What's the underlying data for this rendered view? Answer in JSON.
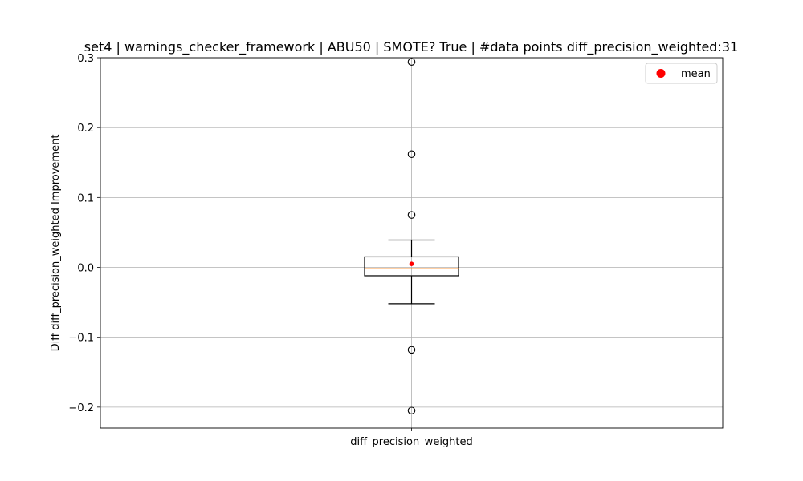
{
  "chart_data": {
    "type": "box",
    "title": "set4 | warnings_checker_framework | ABU50 | SMOTE? True | #data points diff_precision_weighted:31",
    "xlabel": "",
    "ylabel": "Diff diff_precision_weighted Improvement",
    "categories": [
      "diff_precision_weighted"
    ],
    "ylim": [
      -0.23,
      0.3
    ],
    "yticks": [
      -0.2,
      -0.1,
      0.0,
      0.1,
      0.2,
      0.3
    ],
    "ytick_labels": [
      "−0.2",
      "−0.1",
      "0.0",
      "0.1",
      "0.2",
      "0.3"
    ],
    "grid": true,
    "legend": {
      "placement": "top-right",
      "entries": [
        "mean"
      ]
    },
    "boxes": [
      {
        "name": "diff_precision_weighted",
        "whisker_low": -0.052,
        "q1": -0.012,
        "median": -0.002,
        "q3": 0.015,
        "whisker_high": 0.039,
        "mean": 0.005,
        "outliers": [
          0.294,
          0.162,
          0.075,
          -0.118,
          -0.205
        ]
      }
    ],
    "colors": {
      "median": "#ff7f0e",
      "mean": "#ff0000",
      "box": "#000000",
      "grid": "#b0b0b0"
    }
  }
}
